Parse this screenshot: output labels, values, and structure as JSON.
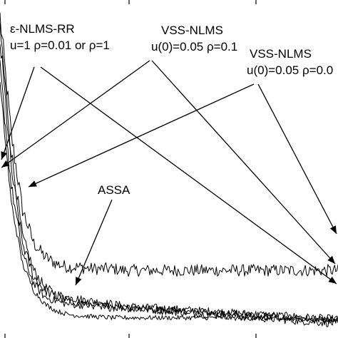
{
  "chart_data": {
    "type": "line",
    "title": "",
    "xlabel": "",
    "ylabel": "",
    "grid": false,
    "x_range": [
      0,
      1000
    ],
    "y_range": [
      0,
      100
    ],
    "series": [
      {
        "values": [
          95,
          60,
          38,
          28,
          24,
          22,
          21,
          21,
          20.5,
          20.5,
          20.5,
          20,
          20,
          20,
          20,
          20,
          20,
          20,
          20,
          20,
          20,
          20,
          20,
          20,
          20,
          20,
          20,
          20,
          20,
          20,
          20
        ],
        "noise": 1.2
      },
      {
        "values": [
          92,
          55,
          30,
          20,
          15,
          13,
          12,
          11.5,
          11,
          10.5,
          10,
          9.5,
          9.2,
          9,
          8.8,
          8.6,
          8.4,
          8.2,
          8,
          7.8,
          7.6,
          7.4,
          7.2,
          7,
          6.8,
          6.6,
          6.4,
          6.2,
          6,
          5.8,
          5.6
        ],
        "noise": 1.0
      },
      {
        "values": [
          88,
          50,
          28,
          18,
          14,
          12,
          11,
          10.5,
          10,
          9.5,
          9.2,
          9,
          8.8,
          8.5,
          8.3,
          8,
          7.8,
          7.5,
          7.2,
          7,
          6.8,
          6.5,
          6.2,
          6,
          5.8,
          5.5,
          5.2,
          5,
          4.8,
          4.5,
          4.3
        ],
        "noise": 1.1
      },
      {
        "values": [
          80,
          45,
          25,
          16,
          12,
          11,
          10,
          9.8,
          9.6,
          9.4,
          9.2,
          9,
          8.8,
          8.6,
          8.4,
          8.2,
          8,
          7.8,
          7.6,
          7.4,
          7.2,
          7,
          6.8,
          6.6,
          6.4,
          6.2,
          6,
          5.8,
          5.6,
          5.4,
          5.2
        ],
        "noise": 0.9
      },
      {
        "values": [
          75,
          40,
          22,
          14,
          10,
          8,
          7,
          6.6,
          6.4,
          6.2,
          6,
          6,
          6,
          6,
          6,
          6,
          6,
          6,
          6,
          6,
          6,
          5.8,
          5.8,
          5.8,
          5.6,
          5.6,
          5.6,
          5.4,
          5.4,
          5.4,
          5.2
        ],
        "noise": 0.6
      }
    ],
    "annotations": [
      {
        "lines": [
          "ε-NLMS-RR",
          "u=1 ρ=0.01 or ρ=1"
        ]
      },
      {
        "lines": [
          "VSS-NLMS",
          "u(0)=0.05 ρ=0.1"
        ]
      },
      {
        "lines": [
          "VSS-NLMS",
          "u(0)=0.05 ρ=0.0"
        ]
      },
      {
        "lines": [
          "ASSA"
        ]
      }
    ]
  }
}
